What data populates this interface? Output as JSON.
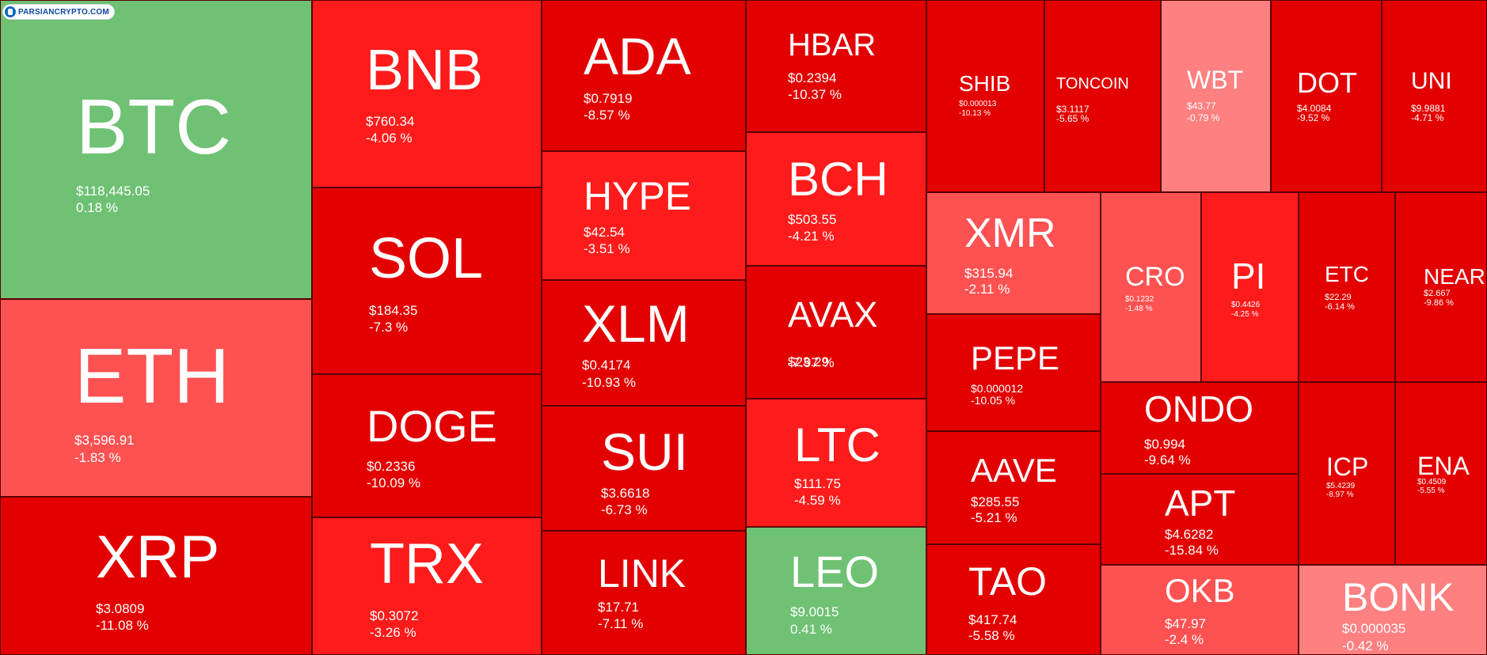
{
  "brand": {
    "logo_text": "PARSIANCRYPTO.COM",
    "logo_icon": "parsiancrypto-logo-icon"
  },
  "palette": {
    "green": "#6fc174",
    "deep_red": "#e20000",
    "red": "#fe1b1b",
    "light_red": "#fe5252",
    "pale_red": "#fe8080",
    "border": "#5a0000"
  },
  "chart_data": {
    "type": "treemap",
    "title": "",
    "items": [
      {
        "symbol": "BTC",
        "price": "$118,445.05",
        "change": "0.18 %",
        "change_value": 0.18
      },
      {
        "symbol": "ETH",
        "price": "$3,596.91",
        "change": "-1.83 %",
        "change_value": -1.83
      },
      {
        "symbol": "XRP",
        "price": "$3.0809",
        "change": "-11.08 %",
        "change_value": -11.08
      },
      {
        "symbol": "BNB",
        "price": "$760.34",
        "change": "-4.06 %",
        "change_value": -4.06
      },
      {
        "symbol": "SOL",
        "price": "$184.35",
        "change": "-7.3 %",
        "change_value": -7.3
      },
      {
        "symbol": "DOGE",
        "price": "$0.2336",
        "change": "-10.09 %",
        "change_value": -10.09
      },
      {
        "symbol": "TRX",
        "price": "$0.3072",
        "change": "-3.26 %",
        "change_value": -3.26
      },
      {
        "symbol": "ADA",
        "price": "$0.7919",
        "change": "-8.57 %",
        "change_value": -8.57
      },
      {
        "symbol": "HYPE",
        "price": "$42.54",
        "change": "-3.51 %",
        "change_value": -3.51
      },
      {
        "symbol": "XLM",
        "price": "$0.4174",
        "change": "-10.93 %",
        "change_value": -10.93
      },
      {
        "symbol": "SUI",
        "price": "$3.6618",
        "change": "-6.73 %",
        "change_value": -6.73
      },
      {
        "symbol": "LINK",
        "price": "$17.71",
        "change": "-7.11 %",
        "change_value": -7.11
      },
      {
        "symbol": "HBAR",
        "price": "$0.2394",
        "change": "-10.37 %",
        "change_value": -10.37
      },
      {
        "symbol": "BCH",
        "price": "$503.55",
        "change": "-4.21 %",
        "change_value": -4.21
      },
      {
        "symbol": "AVAX",
        "price": "$23.29",
        "change": "-7.97 %",
        "change_value": -7.97
      },
      {
        "symbol": "LTC",
        "price": "$111.75",
        "change": "-4.59 %",
        "change_value": -4.59
      },
      {
        "symbol": "LEO",
        "price": "$9.0015",
        "change": "0.41 %",
        "change_value": 0.41
      },
      {
        "symbol": "SHIB",
        "price": "$0.000013",
        "change": "-10.13 %",
        "change_value": -10.13
      },
      {
        "symbol": "TONCOIN",
        "price": "$3.1117",
        "change": "-5.65 %",
        "change_value": -5.65
      },
      {
        "symbol": "WBT",
        "price": "$43.77",
        "change": "-0.79 %",
        "change_value": -0.79
      },
      {
        "symbol": "DOT",
        "price": "$4.0084",
        "change": "-9.52 %",
        "change_value": -9.52
      },
      {
        "symbol": "UNI",
        "price": "$9.9881",
        "change": "-4.71 %",
        "change_value": -4.71
      },
      {
        "symbol": "XMR",
        "price": "$315.94",
        "change": "-2.11 %",
        "change_value": -2.11
      },
      {
        "symbol": "PEPE",
        "price": "$0.000012",
        "change": "-10.05 %",
        "change_value": -10.05
      },
      {
        "symbol": "AAVE",
        "price": "$285.55",
        "change": "-5.21 %",
        "change_value": -5.21
      },
      {
        "symbol": "TAO",
        "price": "$417.74",
        "change": "-5.58 %",
        "change_value": -5.58
      },
      {
        "symbol": "CRO",
        "price": "$0.1232",
        "change": "-1.48 %",
        "change_value": -1.48
      },
      {
        "symbol": "PI",
        "price": "$0.4426",
        "change": "-4.25 %",
        "change_value": -4.25
      },
      {
        "symbol": "ETC",
        "price": "$22.29",
        "change": "-6.14 %",
        "change_value": -6.14
      },
      {
        "symbol": "NEAR",
        "price": "$2.667",
        "change": "-9.86 %",
        "change_value": -9.86
      },
      {
        "symbol": "ONDO",
        "price": "$0.994",
        "change": "-9.64 %",
        "change_value": -9.64
      },
      {
        "symbol": "APT",
        "price": "$4.6282",
        "change": "-15.84 %",
        "change_value": -15.84
      },
      {
        "symbol": "ICP",
        "price": "$5.4239",
        "change": "-8.97 %",
        "change_value": -8.97
      },
      {
        "symbol": "ENA",
        "price": "$0.4509",
        "change": "-5.55 %",
        "change_value": -5.55
      },
      {
        "symbol": "OKB",
        "price": "$47.97",
        "change": "-2.4 %",
        "change_value": -2.4
      },
      {
        "symbol": "BONK",
        "price": "$0.000035",
        "change": "-0.42 %",
        "change_value": -0.42
      }
    ]
  }
}
